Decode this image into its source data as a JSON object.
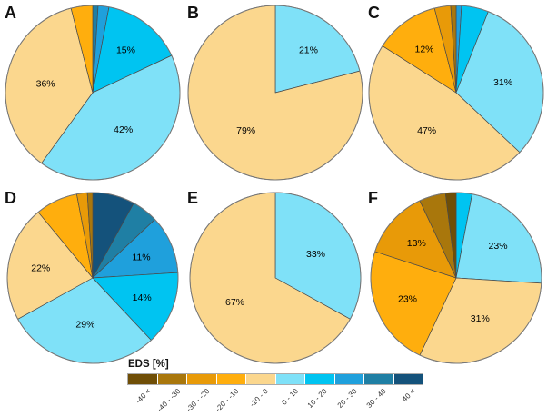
{
  "figure": {
    "background": "#ffffff"
  },
  "legend": {
    "title": "EDS [%]",
    "categories": [
      {
        "range": "-40 <",
        "color": "#6F4E06"
      },
      {
        "range": "-40 - -30",
        "color": "#A9770C"
      },
      {
        "range": "-30 - -20",
        "color": "#E89A08"
      },
      {
        "range": "-20 - -10",
        "color": "#FFAE0D"
      },
      {
        "range": "-10 - 0",
        "color": "#FBD78E"
      },
      {
        "range": "0 - 10",
        "color": "#7FE1F8"
      },
      {
        "range": "10 - 20",
        "color": "#00C4F1"
      },
      {
        "range": "20 - 30",
        "color": "#1FA0DC"
      },
      {
        "range": "30 - 40",
        "color": "#1F7FA4"
      },
      {
        "range": "40 <",
        "color": "#14527B"
      }
    ]
  },
  "chart_data": [
    {
      "id": "A",
      "type": "pie",
      "title": "A",
      "slices": [
        {
          "range": "30 - 40",
          "value": 1,
          "label": ""
        },
        {
          "range": "20 - 30",
          "value": 2,
          "label": ""
        },
        {
          "range": "10 - 20",
          "value": 15,
          "label": "15%"
        },
        {
          "range": "0 - 10",
          "value": 42,
          "label": "42%"
        },
        {
          "range": "-10 - 0",
          "value": 36,
          "label": "36%"
        },
        {
          "range": "-20 - -10",
          "value": 4,
          "label": ""
        }
      ]
    },
    {
      "id": "B",
      "type": "pie",
      "title": "B",
      "slices": [
        {
          "range": "0 - 10",
          "value": 21,
          "label": "21%"
        },
        {
          "range": "-10 - 0",
          "value": 79,
          "label": "79%"
        }
      ]
    },
    {
      "id": "C",
      "type": "pie",
      "title": "C",
      "slices": [
        {
          "range": "20 - 30",
          "value": 1,
          "label": ""
        },
        {
          "range": "10 - 20",
          "value": 5,
          "label": ""
        },
        {
          "range": "0 - 10",
          "value": 31,
          "label": "31%"
        },
        {
          "range": "-10 - 0",
          "value": 47,
          "label": "47%"
        },
        {
          "range": "-20 - -10",
          "value": 12,
          "label": "12%"
        },
        {
          "range": "-30 - -20",
          "value": 3,
          "label": ""
        },
        {
          "range": "-40 - -30",
          "value": 1,
          "label": ""
        }
      ]
    },
    {
      "id": "D",
      "type": "pie",
      "title": "D",
      "slices": [
        {
          "range": "40 <",
          "value": 8,
          "label": ""
        },
        {
          "range": "30 - 40",
          "value": 5,
          "label": ""
        },
        {
          "range": "20 - 30",
          "value": 11,
          "label": "11%"
        },
        {
          "range": "10 - 20",
          "value": 14,
          "label": "14%"
        },
        {
          "range": "0 - 10",
          "value": 29,
          "label": "29%"
        },
        {
          "range": "-10 - 0",
          "value": 22,
          "label": "22%"
        },
        {
          "range": "-20 - -10",
          "value": 8,
          "label": ""
        },
        {
          "range": "-30 - -20",
          "value": 2,
          "label": ""
        },
        {
          "range": "-40 - -30",
          "value": 1,
          "label": ""
        }
      ]
    },
    {
      "id": "E",
      "type": "pie",
      "title": "E",
      "slices": [
        {
          "range": "0 - 10",
          "value": 33,
          "label": "33%"
        },
        {
          "range": "-10 - 0",
          "value": 67,
          "label": "67%"
        }
      ]
    },
    {
      "id": "F",
      "type": "pie",
      "title": "F",
      "slices": [
        {
          "range": "10 - 20",
          "value": 3,
          "label": ""
        },
        {
          "range": "0 - 10",
          "value": 23,
          "label": "23%"
        },
        {
          "range": "-10 - 0",
          "value": 31,
          "label": "31%"
        },
        {
          "range": "-20 - -10",
          "value": 23,
          "label": "23%"
        },
        {
          "range": "-30 - -20",
          "value": 13,
          "label": "13%"
        },
        {
          "range": "-40 - -30",
          "value": 5,
          "label": ""
        },
        {
          "range": "-40 <",
          "value": 2,
          "label": ""
        }
      ]
    }
  ]
}
